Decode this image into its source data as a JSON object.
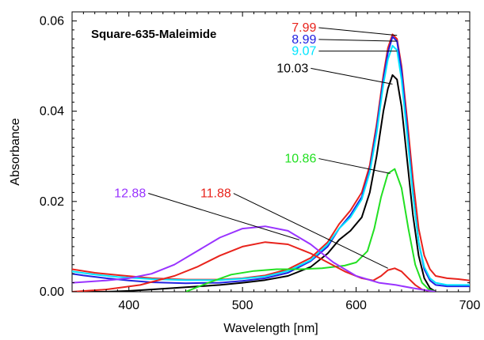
{
  "chart_data": {
    "type": "line",
    "title": "Square-635-Maleimide",
    "xlabel": "Wavelength [nm]",
    "ylabel": "Absorbance",
    "xlim": [
      350,
      700
    ],
    "ylim": [
      0,
      0.062
    ],
    "xticks": [
      400,
      500,
      600,
      700
    ],
    "xtick_labels": [
      "400",
      "500",
      "600",
      "700"
    ],
    "yticks": [
      0,
      0.02,
      0.04,
      0.06
    ],
    "ytick_labels": [
      "0.00",
      "0.02",
      "0.04",
      "0.06"
    ],
    "grid": false,
    "legend": "annotations with leader lines",
    "series": [
      {
        "name": "7.99",
        "color": "#e8231c",
        "x": [
          350,
          360,
          370,
          390,
          420,
          450,
          480,
          500,
          520,
          540,
          560,
          575,
          585,
          595,
          605,
          612,
          618,
          624,
          628,
          632,
          636,
          640,
          645,
          650,
          655,
          660,
          665,
          670,
          680,
          690,
          700
        ],
        "y": [
          0.005,
          0.0046,
          0.0042,
          0.0037,
          0.003,
          0.0027,
          0.0027,
          0.003,
          0.0036,
          0.005,
          0.0075,
          0.011,
          0.015,
          0.018,
          0.022,
          0.028,
          0.037,
          0.048,
          0.054,
          0.057,
          0.056,
          0.05,
          0.038,
          0.025,
          0.014,
          0.008,
          0.005,
          0.0035,
          0.003,
          0.0028,
          0.0025
        ]
      },
      {
        "name": "8.99",
        "color": "#2222e0",
        "x": [
          350,
          360,
          380,
          400,
          420,
          450,
          480,
          500,
          520,
          540,
          560,
          575,
          585,
          595,
          605,
          612,
          618,
          624,
          628,
          632,
          636,
          640,
          645,
          650,
          655,
          660,
          665,
          670,
          680,
          690,
          700
        ],
        "y": [
          0.004,
          0.0036,
          0.003,
          0.0025,
          0.0021,
          0.0019,
          0.002,
          0.0024,
          0.003,
          0.0042,
          0.0068,
          0.01,
          0.014,
          0.017,
          0.021,
          0.027,
          0.036,
          0.047,
          0.053,
          0.0565,
          0.0555,
          0.049,
          0.036,
          0.022,
          0.011,
          0.005,
          0.0025,
          0.0015,
          0.0012,
          0.0012,
          0.0012
        ]
      },
      {
        "name": "9.07",
        "color": "#00e5ff",
        "x": [
          350,
          370,
          390,
          420,
          450,
          480,
          500,
          520,
          540,
          560,
          575,
          585,
          595,
          605,
          612,
          618,
          624,
          628,
          632,
          636,
          640,
          645,
          650,
          655,
          660,
          665,
          670,
          680,
          690,
          700
        ],
        "y": [
          0.0045,
          0.0038,
          0.0033,
          0.0028,
          0.0026,
          0.0026,
          0.0029,
          0.0034,
          0.0046,
          0.007,
          0.0105,
          0.014,
          0.0165,
          0.0205,
          0.0265,
          0.035,
          0.046,
          0.0515,
          0.0545,
          0.0535,
          0.047,
          0.0345,
          0.0215,
          0.011,
          0.0055,
          0.003,
          0.002,
          0.0015,
          0.0015,
          0.0015
        ]
      },
      {
        "name": "10.03",
        "color": "#000000",
        "x": [
          350,
          380,
          400,
          420,
          450,
          480,
          500,
          520,
          540,
          560,
          575,
          585,
          595,
          605,
          612,
          618,
          624,
          628,
          632,
          636,
          640,
          645,
          650,
          655,
          660,
          665,
          670
        ],
        "y": [
          0.0,
          0.0,
          0.0002,
          0.0005,
          0.001,
          0.0015,
          0.002,
          0.0026,
          0.0035,
          0.0055,
          0.0085,
          0.0115,
          0.0135,
          0.0165,
          0.022,
          0.03,
          0.04,
          0.045,
          0.048,
          0.047,
          0.041,
          0.029,
          0.017,
          0.008,
          0.003,
          0.0008,
          0.0
        ]
      },
      {
        "name": "10.86",
        "color": "#22e022",
        "x": [
          450,
          470,
          490,
          510,
          530,
          550,
          570,
          590,
          600,
          610,
          616,
          622,
          628,
          634,
          640,
          646,
          652,
          658,
          664,
          670
        ],
        "y": [
          0.0,
          0.002,
          0.0038,
          0.0046,
          0.005,
          0.005,
          0.0052,
          0.0058,
          0.0065,
          0.009,
          0.014,
          0.021,
          0.0262,
          0.0272,
          0.023,
          0.014,
          0.006,
          0.002,
          0.0005,
          0.0
        ]
      },
      {
        "name": "11.88",
        "color": "#e8231c",
        "x": [
          350,
          380,
          410,
          440,
          460,
          480,
          500,
          520,
          540,
          560,
          575,
          590,
          605,
          615,
          622,
          628,
          634,
          640,
          646,
          652,
          658,
          664,
          670
        ],
        "y": [
          0.0,
          0.0005,
          0.0015,
          0.0035,
          0.0055,
          0.008,
          0.01,
          0.011,
          0.0105,
          0.0085,
          0.0065,
          0.0045,
          0.003,
          0.0025,
          0.0035,
          0.0048,
          0.0052,
          0.0045,
          0.003,
          0.0015,
          0.0005,
          0.0002,
          0.0
        ]
      },
      {
        "name": "12.88",
        "color": "#9933ff",
        "x": [
          350,
          380,
          400,
          420,
          440,
          460,
          480,
          500,
          520,
          540,
          560,
          580,
          600,
          620,
          635,
          650,
          665,
          670
        ],
        "y": [
          0.002,
          0.0025,
          0.003,
          0.004,
          0.006,
          0.009,
          0.012,
          0.014,
          0.0145,
          0.0135,
          0.0105,
          0.0065,
          0.0035,
          0.002,
          0.0015,
          0.0008,
          0.0002,
          0.0
        ]
      }
    ],
    "annotations": [
      {
        "text": "7.99",
        "color": "#e8231c",
        "series": "7.99",
        "target_x": 636,
        "target_y": 0.0568,
        "label_x": 565,
        "label_y": 0.0585
      },
      {
        "text": "8.99",
        "color": "#2222e0",
        "series": "8.99",
        "target_x": 636,
        "target_y": 0.0555,
        "label_x": 565,
        "label_y": 0.0559
      },
      {
        "text": "9.07",
        "color": "#00e5ff",
        "series": "9.07",
        "target_x": 636,
        "target_y": 0.0533,
        "label_x": 565,
        "label_y": 0.0533
      },
      {
        "text": "10.03",
        "color": "#000000",
        "series": "10.03",
        "target_x": 632,
        "target_y": 0.046,
        "label_x": 558,
        "label_y": 0.0495
      },
      {
        "text": "10.86",
        "color": "#22e022",
        "series": "10.86",
        "target_x": 630,
        "target_y": 0.0262,
        "label_x": 565,
        "label_y": 0.0295
      },
      {
        "text": "11.88",
        "color": "#e8231c",
        "series": "11.88",
        "target_x": 628,
        "target_y": 0.0052,
        "label_x": 490,
        "label_y": 0.0218
      },
      {
        "text": "12.88",
        "color": "#9933ff",
        "series": "12.88",
        "target_x": 550,
        "target_y": 0.0115,
        "label_x": 415,
        "label_y": 0.0218
      }
    ]
  }
}
